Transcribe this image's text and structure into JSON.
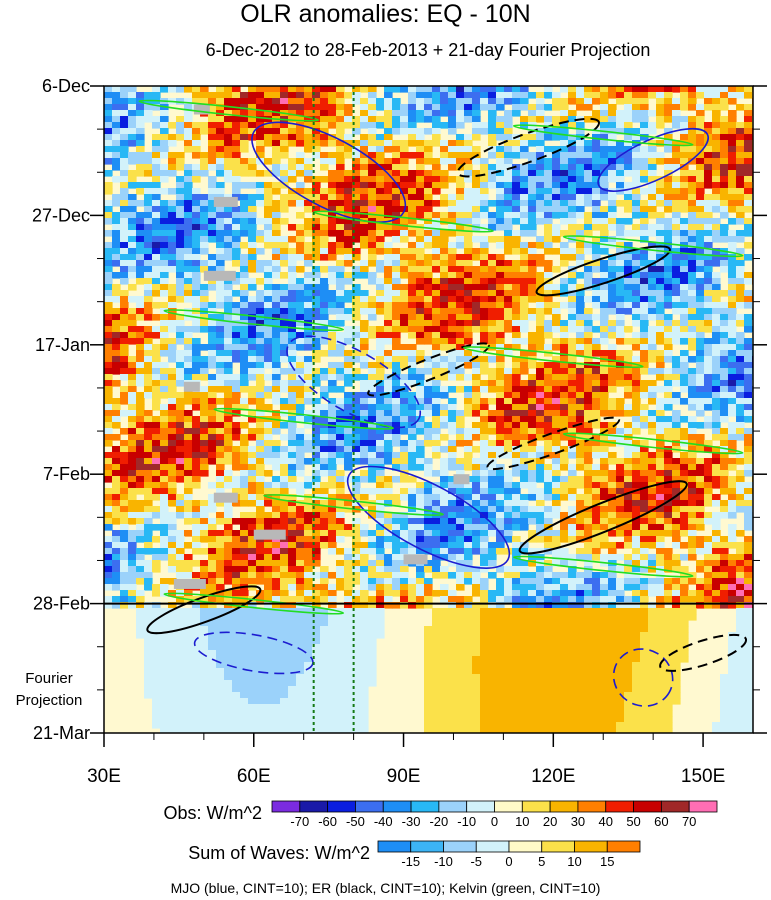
{
  "chart_data": {
    "type": "heatmap",
    "title": "OLR anomalies: EQ - 10N",
    "subtitle": "6-Dec-2012 to 28-Feb-2013 + 21-day Fourier Projection",
    "x_axis": {
      "ticks": [
        "30E",
        "60E",
        "90E",
        "120E",
        "150E"
      ],
      "values": [
        30,
        60,
        90,
        120,
        150
      ],
      "range": [
        30,
        160
      ]
    },
    "y_axis": {
      "ticks": [
        "6-Dec",
        "27-Dec",
        "17-Jan",
        "7-Feb",
        "28-Feb",
        "21-Mar"
      ],
      "day_offsets": [
        0,
        21,
        42,
        63,
        84,
        105
      ],
      "range": [
        0,
        105
      ]
    },
    "projection_label": [
      "Fourier",
      "Projection"
    ],
    "reference_lines_lon": [
      72,
      80
    ],
    "obs_colorbar": {
      "title": "Obs: W/m^2",
      "labels": [
        "-70",
        "-60",
        "-50",
        "-40",
        "-30",
        "-20",
        "-10",
        "0",
        "10",
        "20",
        "30",
        "40",
        "50",
        "60",
        "70"
      ],
      "colors": [
        "#7b2be0",
        "#1a1aa8",
        "#0a1ee0",
        "#3c6ef0",
        "#1e8ef5",
        "#28b8f5",
        "#9bd2fa",
        "#d2f2fa",
        "#fffac8",
        "#fbe14a",
        "#f9b400",
        "#ff7f00",
        "#f01e00",
        "#c80000",
        "#a02828",
        "#ff6eb4"
      ]
    },
    "waves_colorbar": {
      "title": "Sum of Waves: W/m^2",
      "labels": [
        "-15",
        "-10",
        "-5",
        "0",
        "5",
        "10",
        "15"
      ],
      "colors": [
        "#1e8ef5",
        "#3cb4f5",
        "#9bd2fa",
        "#d2f2fa",
        "#fffac8",
        "#fbe14a",
        "#f9b400",
        "#ff7f00"
      ]
    },
    "footnote": "MJO (blue, CINT=10); ER (black, CINT=10); Kelvin (green, CINT=10)"
  }
}
